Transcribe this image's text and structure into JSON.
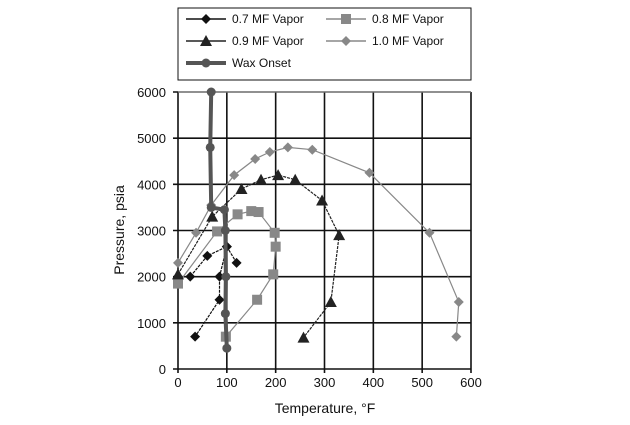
{
  "chart_data": {
    "type": "line",
    "xlabel": "Temperature, °F",
    "ylabel": "Pressure, psia",
    "xlim": [
      0,
      600
    ],
    "ylim": [
      0,
      6000
    ],
    "xticks": [
      0,
      100,
      200,
      300,
      400,
      500,
      600
    ],
    "yticks": [
      0,
      1000,
      2000,
      3000,
      4000,
      5000,
      6000
    ],
    "grid": true,
    "legend_position": "top",
    "series": [
      {
        "name": "0.7 MF Vapor",
        "marker": "diamond",
        "color": "#111111",
        "dash": "3,1",
        "points": [
          [
            120,
            2300
          ],
          [
            100,
            2650
          ],
          [
            60,
            2450
          ],
          [
            25,
            2000
          ],
          [
            0,
            2000
          ]
        ],
        "points2": [
          [
            100,
            2650
          ],
          [
            85,
            2000
          ],
          [
            85,
            1500
          ],
          [
            35,
            700
          ]
        ]
      },
      {
        "name": "0.8 MF Vapor",
        "marker": "square",
        "color": "#888888",
        "dash": "",
        "points": [
          [
            0,
            1850
          ],
          [
            80,
            2980
          ],
          [
            122,
            3350
          ],
          [
            150,
            3420
          ],
          [
            165,
            3400
          ],
          [
            198,
            2950
          ],
          [
            200,
            2650
          ],
          [
            195,
            2050
          ],
          [
            162,
            1500
          ],
          [
            98,
            700
          ]
        ]
      },
      {
        "name": "0.9 MF Vapor",
        "marker": "triangle",
        "color": "#222222",
        "dash": "3,1",
        "points": [
          [
            0,
            2050
          ],
          [
            70,
            3300
          ],
          [
            130,
            3900
          ],
          [
            170,
            4100
          ],
          [
            205,
            4200
          ],
          [
            240,
            4100
          ],
          [
            295,
            3650
          ],
          [
            330,
            2900
          ],
          [
            313,
            1450
          ],
          [
            257,
            680
          ]
        ]
      },
      {
        "name": "1.0 MF Vapor",
        "marker": "diamond",
        "color": "#888888",
        "dash": "",
        "points": [
          [
            0,
            2300
          ],
          [
            37,
            2950
          ],
          [
            68,
            3550
          ],
          [
            115,
            4200
          ],
          [
            158,
            4550
          ],
          [
            188,
            4700
          ],
          [
            225,
            4800
          ],
          [
            275,
            4750
          ],
          [
            392,
            4250
          ],
          [
            515,
            2950
          ],
          [
            575,
            1450
          ],
          [
            570,
            700
          ]
        ]
      },
      {
        "name": "Wax Onset",
        "marker": "circle",
        "color": "#555555",
        "dash": "",
        "thick": true,
        "points": [
          [
            68,
            6000
          ],
          [
            66,
            4800
          ],
          [
            68,
            3500
          ],
          [
            95,
            3450
          ],
          [
            97,
            3000
          ],
          [
            98,
            2000
          ],
          [
            97,
            1200
          ],
          [
            100,
            450
          ]
        ]
      }
    ]
  }
}
